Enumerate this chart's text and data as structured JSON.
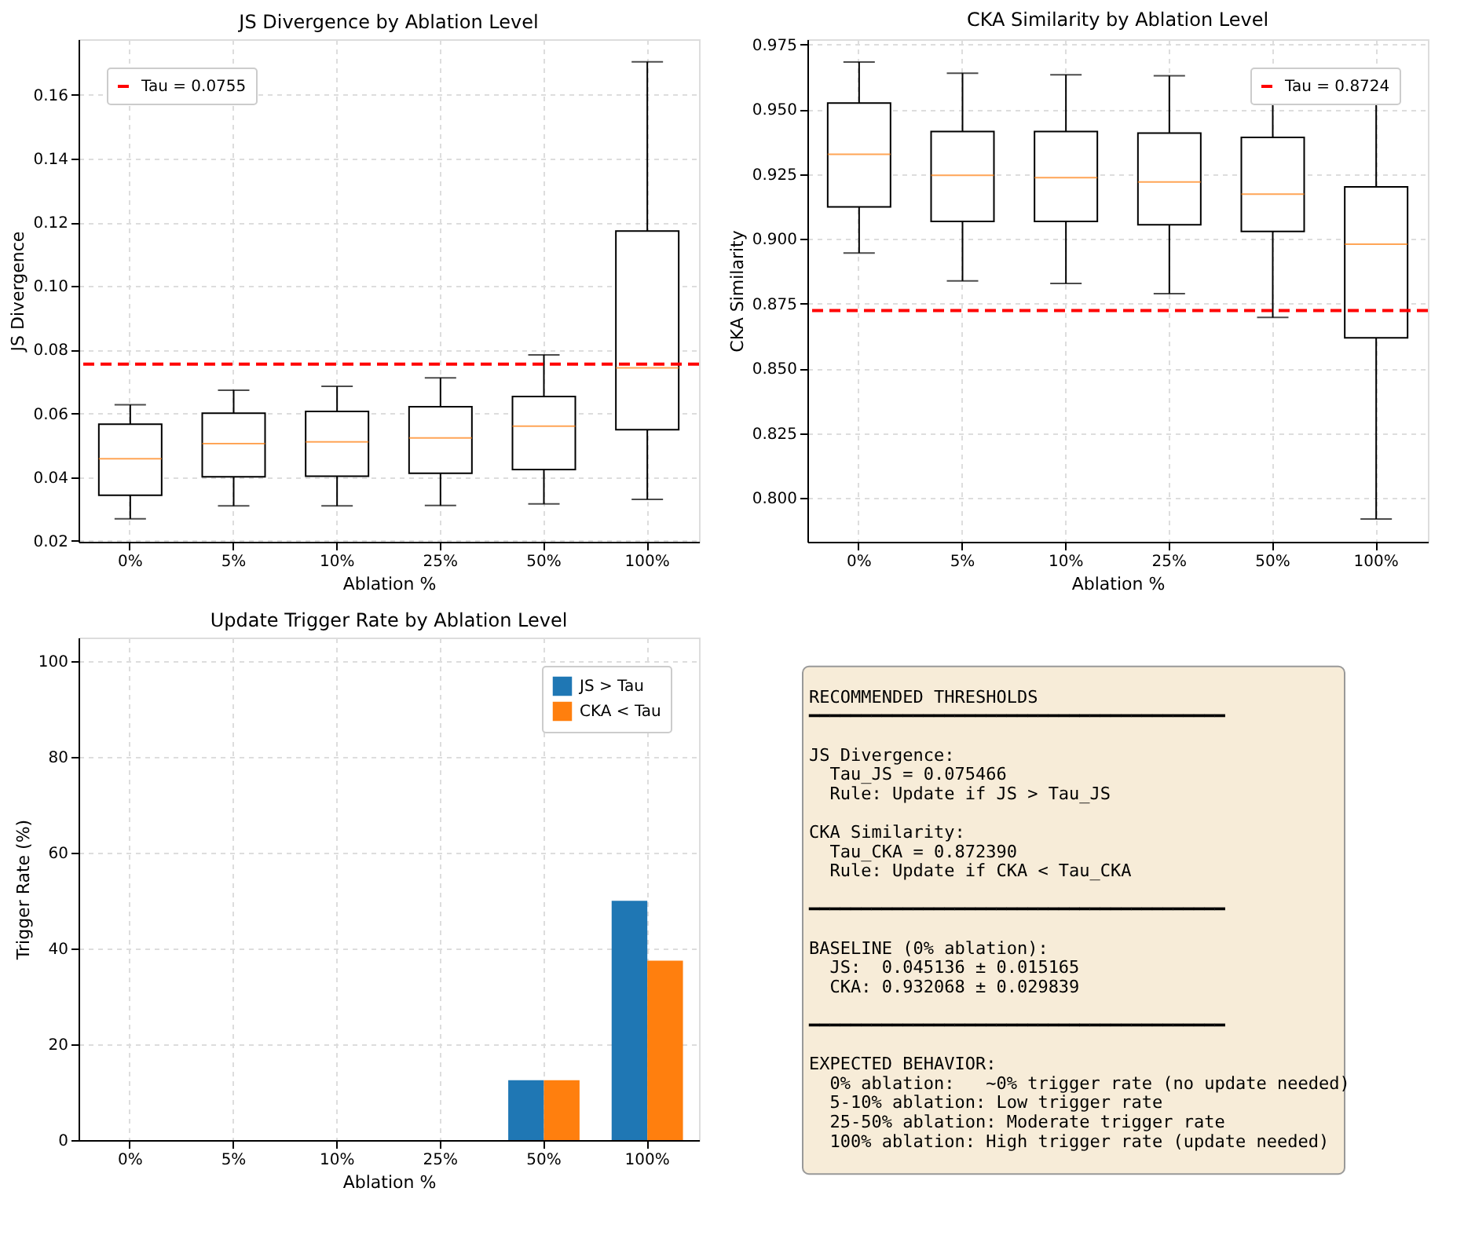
{
  "chart_data": [
    {
      "type": "box",
      "title": "JS Divergence by Ablation Level",
      "xlabel": "Ablation %",
      "ylabel": "JS Divergence",
      "categories": [
        "0%",
        "5%",
        "10%",
        "25%",
        "50%",
        "100%"
      ],
      "boxes": [
        {
          "low": 0.0269,
          "q1": 0.0343,
          "median": 0.0458,
          "q3": 0.0566,
          "high": 0.0627
        },
        {
          "low": 0.031,
          "q1": 0.0401,
          "median": 0.0505,
          "q3": 0.0601,
          "high": 0.0673
        },
        {
          "low": 0.031,
          "q1": 0.0403,
          "median": 0.0511,
          "q3": 0.0606,
          "high": 0.0685
        },
        {
          "low": 0.0311,
          "q1": 0.0412,
          "median": 0.0523,
          "q3": 0.0621,
          "high": 0.0712
        },
        {
          "low": 0.0316,
          "q1": 0.0424,
          "median": 0.056,
          "q3": 0.0653,
          "high": 0.0784
        },
        {
          "low": 0.033,
          "q1": 0.0549,
          "median": 0.0743,
          "q3": 0.1173,
          "high": 0.1704
        }
      ],
      "ylim": [
        0.0197,
        0.1775
      ],
      "yticks": [
        0.02,
        0.04,
        0.06,
        0.08,
        {
          "value": 0.1,
          "label": "0.10"
        },
        0.12,
        0.14,
        0.16
      ],
      "ref_lines": [
        {
          "axis": "y",
          "value": 0.0755,
          "label": "Tau = 0.0755",
          "color": "#ff0000",
          "line_style": "dashed"
        }
      ],
      "grid": true,
      "legend": "top left"
    },
    {
      "type": "box",
      "title": "CKA Similarity by Ablation Level",
      "xlabel": "Ablation %",
      "ylabel": "CKA Similarity",
      "categories": [
        "0%",
        "5%",
        "10%",
        "25%",
        "50%",
        "100%"
      ],
      "boxes": [
        {
          "low": 0.8946,
          "q1": 0.9124,
          "median": 0.9327,
          "q3": 0.9525,
          "high": 0.9683
        },
        {
          "low": 0.8838,
          "q1": 0.9068,
          "median": 0.9246,
          "q3": 0.9415,
          "high": 0.964
        },
        {
          "low": 0.8828,
          "q1": 0.9068,
          "median": 0.9237,
          "q3": 0.9415,
          "high": 0.9634
        },
        {
          "low": 0.8789,
          "q1": 0.9055,
          "median": 0.922,
          "q3": 0.9409,
          "high": 0.963
        },
        {
          "low": 0.8697,
          "q1": 0.9029,
          "median": 0.9173,
          "q3": 0.9392,
          "high": 0.9621
        },
        {
          "low": 0.7919,
          "q1": 0.8618,
          "median": 0.898,
          "q3": 0.9201,
          "high": 0.9604
        }
      ],
      "ylim": [
        0.7831,
        0.9771
      ],
      "yticks": [
        {
          "value": 0.8,
          "label": "0.800"
        },
        0.825,
        {
          "value": 0.85,
          "label": "0.850"
        },
        0.875,
        {
          "value": 0.9,
          "label": "0.900"
        },
        0.925,
        {
          "value": 0.95,
          "label": "0.950"
        },
        0.975
      ],
      "ref_lines": [
        {
          "axis": "y",
          "value": 0.8724,
          "label": "Tau = 0.8724",
          "color": "#ff0000",
          "line_style": "dashed"
        }
      ],
      "grid": true,
      "legend": "top right"
    },
    {
      "type": "bar",
      "title": "Update Trigger Rate by Ablation Level",
      "xlabel": "Ablation %",
      "ylabel": "Trigger Rate (%)",
      "categories": [
        "0%",
        "5%",
        "10%",
        "25%",
        "50%",
        "100%"
      ],
      "series": [
        {
          "name": "JS > Tau",
          "color": "#1f77b4",
          "values": [
            0,
            0,
            0,
            0,
            12.5,
            50
          ]
        },
        {
          "name": "CKA < Tau",
          "color": "#ff7f0e",
          "values": [
            0,
            0,
            0,
            0,
            12.5,
            37.5
          ]
        }
      ],
      "ylim": [
        0,
        105
      ],
      "yticks": [
        0,
        20,
        40,
        60,
        80,
        100
      ],
      "grid": true,
      "legend": "top right"
    },
    {
      "type": "other",
      "annotations": [
        "RECOMMENDED THRESHOLDS\n━━━━━━━━━━━━━━━━━━━━━━━━━━━━━━━━━━━━━━━━",
        "JS Divergence:\n  Tau_JS = 0.075466\n  Rule: Update if JS > Tau_JS",
        "CKA Similarity:\n  Tau_CKA = 0.872390\n  Rule: Update if CKA < Tau_CKA",
        "━━━━━━━━━━━━━━━━━━━━━━━━━━━━━━━━━━━━━━━━",
        "BASELINE (0% ablation):\n  JS:  0.045136 ± 0.015165\n  CKA: 0.932068 ± 0.029839",
        "━━━━━━━━━━━━━━━━━━━━━━━━━━━━━━━━━━━━━━━━",
        "EXPECTED BEHAVIOR:\n  0% ablation:   ~0% trigger rate (no update needed)\n  5-10% ablation: Low trigger rate\n  25-50% ablation: Moderate trigger rate\n  100% ablation: High trigger rate (update needed)"
      ]
    }
  ]
}
